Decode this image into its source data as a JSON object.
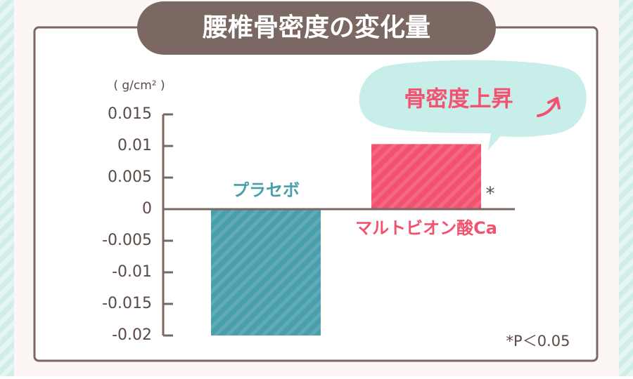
{
  "chart_data": {
    "type": "bar",
    "title": "腰椎骨密度の変化量",
    "unit": "( g/cm² )",
    "categories": [
      "プラセボ",
      "マルトビオン酸Ca"
    ],
    "values": [
      -0.02,
      0.0103
    ],
    "colors": [
      "#4a9fad",
      "#f2516f"
    ],
    "ylim": [
      -0.02,
      0.015
    ],
    "yticks": [
      0.015,
      0.01,
      0.005,
      0,
      -0.005,
      -0.01,
      -0.015,
      -0.02
    ],
    "significance_mark": "*",
    "footnote": "*P＜0.05",
    "callout": "骨密度上昇"
  }
}
